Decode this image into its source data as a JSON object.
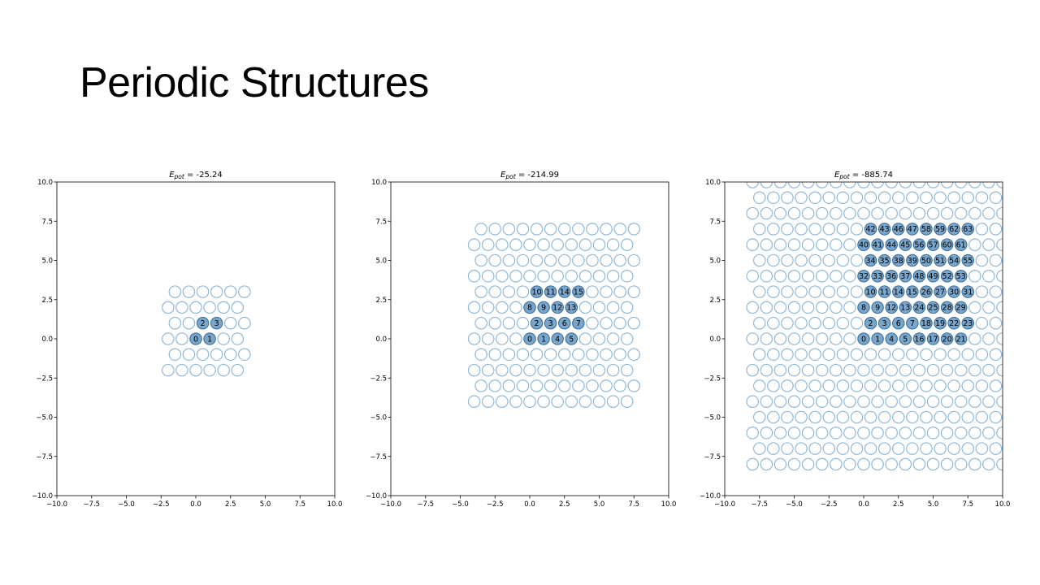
{
  "slide": {
    "title": "Periodic Structures"
  },
  "colors": {
    "cell": "#8fb8d8",
    "atom_fill": "#7aa6cc",
    "atom_stroke": "#3d6f99",
    "axis": "#000000"
  },
  "chart_data": [
    {
      "type": "scatter",
      "title": "E_pot = -25.24",
      "energy_value": "-25.24",
      "xlim": [
        -10,
        10
      ],
      "ylim": [
        -10,
        10
      ],
      "xticks": [
        "−10.0",
        "−7.5",
        "−5.0",
        "−2.5",
        "0.0",
        "2.5",
        "5.0",
        "7.5",
        "10.0"
      ],
      "yticks": [
        "10.0",
        "7.5",
        "5.0",
        "2.5",
        "0.0",
        "−2.5",
        "−5.0",
        "−7.5",
        "−10.0"
      ],
      "grid": false,
      "lattice": {
        "x_min": -2.0,
        "x_max": 3.5,
        "y_min": -2.0,
        "y_max": 3.0,
        "row_spacing": 1.1,
        "col_spacing": 1.0
      },
      "atoms": [
        {
          "id": "0",
          "x": 0.0,
          "y": 0.0
        },
        {
          "id": "1",
          "x": 1.0,
          "y": 0.0
        },
        {
          "id": "2",
          "x": 0.5,
          "y": 1.0
        },
        {
          "id": "3",
          "x": 1.5,
          "y": 1.0
        }
      ]
    },
    {
      "type": "scatter",
      "title": "E_pot = -214.99",
      "energy_value": "-214.99",
      "xlim": [
        -10,
        10
      ],
      "ylim": [
        -10,
        10
      ],
      "xticks": [
        "−10.0",
        "−7.5",
        "−5.0",
        "−2.5",
        "0.0",
        "2.5",
        "5.0",
        "7.5",
        "10.0"
      ],
      "yticks": [
        "10.0",
        "7.5",
        "5.0",
        "2.5",
        "0.0",
        "−2.5",
        "−5.0",
        "−7.5",
        "−10.0"
      ],
      "grid": false,
      "lattice": {
        "x_min": -4.0,
        "x_max": 7.5,
        "y_min": -4.0,
        "y_max": 7.0
      },
      "atoms": [
        {
          "id": "0",
          "x": 0.0,
          "y": 0.0
        },
        {
          "id": "1",
          "x": 1.0,
          "y": 0.0
        },
        {
          "id": "4",
          "x": 2.0,
          "y": 0.0
        },
        {
          "id": "5",
          "x": 3.0,
          "y": 0.0
        },
        {
          "id": "2",
          "x": 0.5,
          "y": 1.0
        },
        {
          "id": "3",
          "x": 1.5,
          "y": 1.0
        },
        {
          "id": "6",
          "x": 2.5,
          "y": 1.0
        },
        {
          "id": "7",
          "x": 3.5,
          "y": 1.0
        },
        {
          "id": "8",
          "x": 0.0,
          "y": 2.0
        },
        {
          "id": "9",
          "x": 1.0,
          "y": 2.0
        },
        {
          "id": "12",
          "x": 2.0,
          "y": 2.0
        },
        {
          "id": "13",
          "x": 3.0,
          "y": 2.0
        },
        {
          "id": "10",
          "x": 0.5,
          "y": 3.0
        },
        {
          "id": "11",
          "x": 1.5,
          "y": 3.0
        },
        {
          "id": "14",
          "x": 2.5,
          "y": 3.0
        },
        {
          "id": "15",
          "x": 3.5,
          "y": 3.0
        }
      ]
    },
    {
      "type": "scatter",
      "title": "E_pot = -885.74",
      "energy_value": "-885.74",
      "xlim": [
        -10,
        10
      ],
      "ylim": [
        -10,
        10
      ],
      "xticks": [
        "−10.0",
        "−7.5",
        "−5.0",
        "−2.5",
        "0.0",
        "2.5",
        "5.0",
        "7.5",
        "10.0"
      ],
      "yticks": [
        "10.0",
        "7.5",
        "5.0",
        "2.5",
        "0.0",
        "−2.5",
        "−5.0",
        "−7.5",
        "−10.0"
      ],
      "grid": false,
      "lattice": {
        "x_min": -8.0,
        "x_max": 10.0,
        "y_min": -8.0,
        "y_max": 10.0
      },
      "atoms": [
        {
          "id": "0",
          "x": 0.0,
          "y": 0.0
        },
        {
          "id": "1",
          "x": 1.0,
          "y": 0.0
        },
        {
          "id": "4",
          "x": 2.0,
          "y": 0.0
        },
        {
          "id": "5",
          "x": 3.0,
          "y": 0.0
        },
        {
          "id": "16",
          "x": 4.0,
          "y": 0.0
        },
        {
          "id": "17",
          "x": 5.0,
          "y": 0.0
        },
        {
          "id": "20",
          "x": 6.0,
          "y": 0.0
        },
        {
          "id": "21",
          "x": 7.0,
          "y": 0.0
        },
        {
          "id": "2",
          "x": 0.5,
          "y": 1.0
        },
        {
          "id": "3",
          "x": 1.5,
          "y": 1.0
        },
        {
          "id": "6",
          "x": 2.5,
          "y": 1.0
        },
        {
          "id": "7",
          "x": 3.5,
          "y": 1.0
        },
        {
          "id": "18",
          "x": 4.5,
          "y": 1.0
        },
        {
          "id": "19",
          "x": 5.5,
          "y": 1.0
        },
        {
          "id": "22",
          "x": 6.5,
          "y": 1.0
        },
        {
          "id": "23",
          "x": 7.5,
          "y": 1.0
        },
        {
          "id": "8",
          "x": 0.0,
          "y": 2.0
        },
        {
          "id": "9",
          "x": 1.0,
          "y": 2.0
        },
        {
          "id": "12",
          "x": 2.0,
          "y": 2.0
        },
        {
          "id": "13",
          "x": 3.0,
          "y": 2.0
        },
        {
          "id": "24",
          "x": 4.0,
          "y": 2.0
        },
        {
          "id": "25",
          "x": 5.0,
          "y": 2.0
        },
        {
          "id": "28",
          "x": 6.0,
          "y": 2.0
        },
        {
          "id": "29",
          "x": 7.0,
          "y": 2.0
        },
        {
          "id": "10",
          "x": 0.5,
          "y": 3.0
        },
        {
          "id": "11",
          "x": 1.5,
          "y": 3.0
        },
        {
          "id": "14",
          "x": 2.5,
          "y": 3.0
        },
        {
          "id": "15",
          "x": 3.5,
          "y": 3.0
        },
        {
          "id": "26",
          "x": 4.5,
          "y": 3.0
        },
        {
          "id": "27",
          "x": 5.5,
          "y": 3.0
        },
        {
          "id": "30",
          "x": 6.5,
          "y": 3.0
        },
        {
          "id": "31",
          "x": 7.5,
          "y": 3.0
        },
        {
          "id": "32",
          "x": 0.0,
          "y": 4.0
        },
        {
          "id": "33",
          "x": 1.0,
          "y": 4.0
        },
        {
          "id": "36",
          "x": 2.0,
          "y": 4.0
        },
        {
          "id": "37",
          "x": 3.0,
          "y": 4.0
        },
        {
          "id": "48",
          "x": 4.0,
          "y": 4.0
        },
        {
          "id": "49",
          "x": 5.0,
          "y": 4.0
        },
        {
          "id": "52",
          "x": 6.0,
          "y": 4.0
        },
        {
          "id": "53",
          "x": 7.0,
          "y": 4.0
        },
        {
          "id": "34",
          "x": 0.5,
          "y": 5.0
        },
        {
          "id": "35",
          "x": 1.5,
          "y": 5.0
        },
        {
          "id": "38",
          "x": 2.5,
          "y": 5.0
        },
        {
          "id": "39",
          "x": 3.5,
          "y": 5.0
        },
        {
          "id": "50",
          "x": 4.5,
          "y": 5.0
        },
        {
          "id": "51",
          "x": 5.5,
          "y": 5.0
        },
        {
          "id": "54",
          "x": 6.5,
          "y": 5.0
        },
        {
          "id": "55",
          "x": 7.5,
          "y": 5.0
        },
        {
          "id": "40",
          "x": 0.0,
          "y": 6.0
        },
        {
          "id": "41",
          "x": 1.0,
          "y": 6.0
        },
        {
          "id": "44",
          "x": 2.0,
          "y": 6.0
        },
        {
          "id": "45",
          "x": 3.0,
          "y": 6.0
        },
        {
          "id": "56",
          "x": 4.0,
          "y": 6.0
        },
        {
          "id": "57",
          "x": 5.0,
          "y": 6.0
        },
        {
          "id": "60",
          "x": 6.0,
          "y": 6.0
        },
        {
          "id": "61",
          "x": 7.0,
          "y": 6.0
        },
        {
          "id": "42",
          "x": 0.5,
          "y": 7.0
        },
        {
          "id": "43",
          "x": 1.5,
          "y": 7.0
        },
        {
          "id": "46",
          "x": 2.5,
          "y": 7.0
        },
        {
          "id": "47",
          "x": 3.5,
          "y": 7.0
        },
        {
          "id": "58",
          "x": 4.5,
          "y": 7.0
        },
        {
          "id": "59",
          "x": 5.5,
          "y": 7.0
        },
        {
          "id": "62",
          "x": 6.5,
          "y": 7.0
        },
        {
          "id": "63",
          "x": 7.5,
          "y": 7.0
        }
      ]
    }
  ]
}
